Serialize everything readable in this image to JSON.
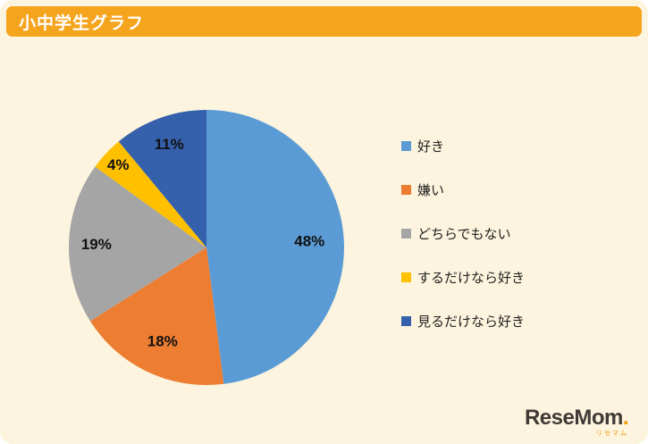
{
  "header": {
    "title": "小中学生グラフ"
  },
  "chart_data": {
    "type": "pie",
    "title": "小中学生グラフ",
    "categories": [
      "好き",
      "嫌い",
      "どちらでもない",
      "するだけなら好き",
      "見るだけなら好き"
    ],
    "values": [
      48,
      18,
      19,
      4,
      11
    ],
    "unit": "%",
    "data_labels": [
      "48%",
      "18%",
      "19%",
      "4%",
      "11%"
    ],
    "colors": [
      "#5B9BD5",
      "#ED7D31",
      "#A5A5A5",
      "#FFC000",
      "#3560AC"
    ],
    "start_angle": "top",
    "direction": "clockwise",
    "legend_position": "right",
    "background": "#FCF4DE",
    "header_color": "#F5A41D"
  },
  "logo": {
    "wordmark": "ReseMom",
    "dot": ".",
    "subtext": "リセマム"
  }
}
